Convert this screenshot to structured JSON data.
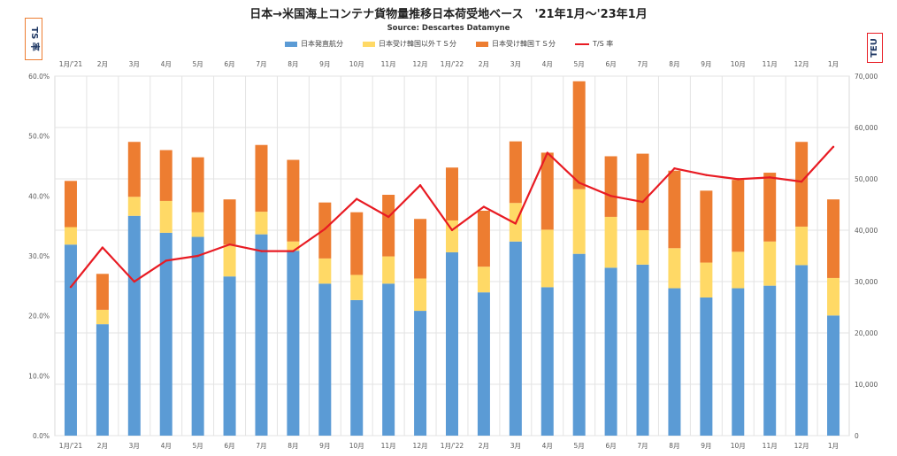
{
  "chart_data": {
    "type": "bar",
    "title": "日本→米国海上コンテナ貨物量推移日本荷受地ベース　'21年1月～'23年1月",
    "subtitle": "Source: Descartes Datamyne",
    "left_axis_label": "TS 率",
    "right_axis_label": "TEU",
    "categories": [
      "1月/'21",
      "2月",
      "3月",
      "4月",
      "5月",
      "6月",
      "7月",
      "8月",
      "9月",
      "10月",
      "11月",
      "12月",
      "1月/'22",
      "2月",
      "3月",
      "4月",
      "5月",
      "6月",
      "7月",
      "8月",
      "9月",
      "10月",
      "11月",
      "12月",
      "1月"
    ],
    "series": [
      {
        "name": "日本発直航分",
        "kind": "bar",
        "axis": "right",
        "color": "#5b9bd5",
        "values": [
          37200,
          21700,
          42800,
          39500,
          38700,
          31000,
          39200,
          36000,
          29600,
          26400,
          29600,
          24300,
          35700,
          27900,
          37800,
          28900,
          35400,
          32700,
          33300,
          28700,
          26900,
          28700,
          29200,
          33200,
          23400
        ]
      },
      {
        "name": "日本受け韓国以外ＴＳ分",
        "kind": "bar",
        "axis": "right",
        "color": "#ffd966",
        "values": [
          3400,
          2800,
          3700,
          6200,
          4800,
          6200,
          4400,
          1800,
          4900,
          4900,
          5300,
          6300,
          6200,
          5000,
          7500,
          11200,
          12600,
          9900,
          6700,
          7800,
          6800,
          7100,
          8600,
          7500,
          7300
        ]
      },
      {
        "name": "日本受け韓国ＴＳ分",
        "kind": "bar",
        "axis": "right",
        "color": "#ed7d31",
        "values": [
          9000,
          7000,
          10700,
          9900,
          10700,
          8800,
          13000,
          15900,
          10900,
          12200,
          12000,
          11600,
          10300,
          10900,
          12000,
          15000,
          21000,
          11800,
          14900,
          15100,
          14000,
          14000,
          13400,
          16500,
          15300
        ]
      },
      {
        "name": "T/S 率",
        "kind": "line",
        "axis": "left",
        "color": "#e81b23",
        "values": [
          24.8,
          31.4,
          25.7,
          29.2,
          30.0,
          31.9,
          30.8,
          30.8,
          34.5,
          39.5,
          36.5,
          41.8,
          34.3,
          38.2,
          35.4,
          47.2,
          42.2,
          40.0,
          39.0,
          44.6,
          43.5,
          42.8,
          43.1,
          42.4,
          48.2
        ]
      }
    ],
    "left_axis": {
      "min": 0,
      "max": 60,
      "ticks": [
        "0.0%",
        "10.0%",
        "20.0%",
        "30.0%",
        "40.0%",
        "50.0%",
        "60.0%"
      ]
    },
    "right_axis": {
      "min": 0,
      "max": 70000,
      "ticks": [
        "0",
        "10,000",
        "20,000",
        "30,000",
        "40,000",
        "50,000",
        "60,000",
        "70,000"
      ]
    },
    "grid": true,
    "legend_position": "top"
  }
}
